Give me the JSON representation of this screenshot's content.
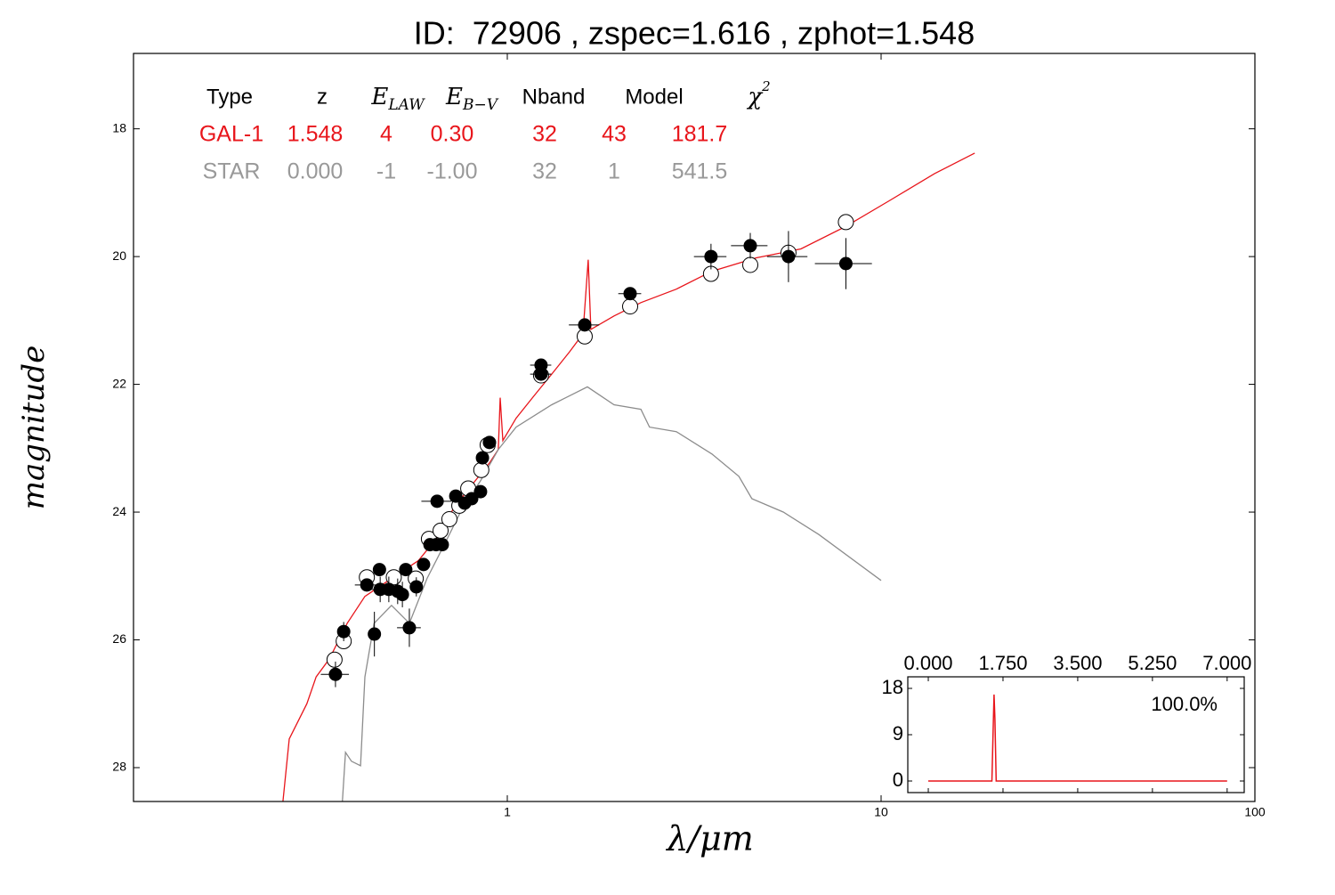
{
  "chart_data": [
    {
      "type": "line",
      "title": "ID:  72906 , zspec=1.616 , zphot=1.548",
      "xlabel": "λ/μm",
      "ylabel": "magnitude",
      "x_log": true,
      "y_inverted": true,
      "xlim": [
        0.1,
        100
      ],
      "ylim": [
        16.82,
        28.53
      ],
      "xticks": [
        1,
        10,
        100
      ],
      "yticks": [
        18,
        20,
        22,
        24,
        26,
        28
      ],
      "table": {
        "header": [
          "Type",
          "z",
          {
            "text": "E",
            "sub": "LAW"
          },
          {
            "text": "E",
            "sub": "B−V"
          },
          "Nband",
          "Model",
          {
            "text": "χ",
            "sup": "2"
          }
        ],
        "rows": [
          {
            "color": "#e8151b",
            "cells": [
              "GAL-1",
              "1.548",
              "4",
              "0.30",
              "32",
              "43",
              "181.7"
            ]
          },
          {
            "color": "#999999",
            "cells": [
              "STAR",
              "0.000",
              "-1",
              "-1.00",
              "32",
              "1",
              "541.5"
            ]
          }
        ]
      },
      "series": [
        {
          "type": "line",
          "color": "#e8151b",
          "x": [
            0.251,
            0.261,
            0.291,
            0.308,
            0.334,
            0.373,
            0.416,
            0.49,
            0.578,
            0.645,
            0.72,
            0.803,
            0.896,
            0.946,
            0.957,
            0.973,
            1.056,
            1.179,
            1.315,
            1.468,
            1.594,
            1.646,
            1.673,
            1.93,
            2.277,
            2.832,
            3.526,
            4.638,
            6.102,
            8.03,
            10.56,
            13.9,
            17.8
          ],
          "values": [
            28.53,
            27.55,
            27.0,
            26.58,
            26.3,
            25.74,
            25.32,
            25.04,
            24.76,
            24.42,
            23.93,
            23.58,
            23.23,
            23.02,
            22.21,
            22.88,
            22.53,
            22.18,
            21.84,
            21.49,
            21.21,
            20.05,
            21.14,
            20.93,
            20.72,
            20.51,
            20.23,
            20.02,
            19.88,
            19.53,
            19.12,
            18.7,
            18.38
          ]
        },
        {
          "type": "line",
          "color": "#8c8c8c",
          "x": [
            0.362,
            0.369,
            0.383,
            0.405,
            0.416,
            0.44,
            0.49,
            0.547,
            0.61,
            0.681,
            0.76,
            0.848,
            0.946,
            1.056,
            1.315,
            1.638,
            1.93,
            2.277,
            2.402,
            2.832,
            3.526,
            4.163,
            4.511,
            5.473,
            6.812,
            10.0
          ],
          "values": [
            28.53,
            27.76,
            27.9,
            27.97,
            26.58,
            25.74,
            25.46,
            25.74,
            25.04,
            24.49,
            23.93,
            23.51,
            23.02,
            22.67,
            22.32,
            22.04,
            22.32,
            22.39,
            22.67,
            22.74,
            23.09,
            23.44,
            23.79,
            24.0,
            24.35,
            25.07
          ]
        },
        {
          "type": "scatter",
          "color": "#000000",
          "fill": "#ffffff",
          "x": [
            0.345,
            0.365,
            0.421,
            0.497,
            0.569,
            0.617,
            0.663,
            0.7,
            0.744,
            0.786,
            0.852,
            0.886,
            1.231,
            1.611,
            2.131,
            3.507,
            4.467,
            5.652,
            8.05
          ],
          "values": [
            26.31,
            26.02,
            25.02,
            25.02,
            25.04,
            24.42,
            24.29,
            24.11,
            23.9,
            23.63,
            23.34,
            22.95,
            21.86,
            21.25,
            20.78,
            20.27,
            20.13,
            19.94,
            19.46
          ]
        },
        {
          "type": "errorbar",
          "color": "#000000",
          "fill": "#000000",
          "x": [
            0.347,
            0.365,
            0.421,
            0.441,
            0.455,
            0.457,
            0.482,
            0.509,
            0.524,
            0.535,
            0.547,
            0.571,
            0.597,
            0.621,
            0.645,
            0.67,
            0.649,
            0.728,
            0.769,
            0.803,
            0.848,
            0.858,
            0.896,
            1.231,
            1.231,
            1.611,
            2.131,
            3.507,
            4.467,
            5.652,
            8.05
          ],
          "values": [
            26.54,
            25.87,
            25.14,
            25.91,
            24.9,
            25.21,
            25.21,
            25.24,
            25.29,
            24.9,
            25.81,
            25.17,
            24.82,
            24.51,
            24.51,
            24.51,
            23.83,
            23.75,
            23.86,
            23.79,
            23.68,
            23.15,
            22.91,
            21.7,
            21.84,
            21.07,
            20.58,
            20.0,
            19.83,
            20.0,
            20.11
          ],
          "yerr": [
            0.2,
            0.15,
            0.1,
            0.35,
            0.1,
            0.2,
            0.2,
            0.2,
            0.2,
            0.1,
            0.3,
            0.15,
            0.1,
            0.1,
            0.1,
            0.1,
            0.1,
            0.1,
            0.1,
            0.1,
            0.1,
            0.1,
            0.1,
            0.05,
            0.05,
            0.05,
            0.05,
            0.2,
            0.2,
            0.4,
            0.4
          ],
          "xerr": [
            0.03,
            0.01,
            0.03,
            0.01,
            0.01,
            0.04,
            0.01,
            0.01,
            0.01,
            0.01,
            0.04,
            0.02,
            0.01,
            0.01,
            0.01,
            0.01,
            0.06,
            0.01,
            0.01,
            0.01,
            0.01,
            0.02,
            0.02,
            0.08,
            0.08,
            0.15,
            0.15,
            0.35,
            0.5,
            0.7,
            1.4
          ]
        }
      ]
    },
    {
      "type": "line",
      "annotation": "100.0%",
      "xlim": [
        -0.48,
        7.4
      ],
      "ylim": [
        -2.25,
        20.25
      ],
      "xticks": [
        {
          "value": 0,
          "label": "0.000"
        },
        {
          "value": 1.75,
          "label": "1.750"
        },
        {
          "value": 3.5,
          "label": "3.500"
        },
        {
          "value": 5.25,
          "label": "5.250"
        },
        {
          "value": 7,
          "label": "7.000"
        }
      ],
      "yticks": [
        0,
        9,
        18
      ],
      "series": [
        {
          "type": "line",
          "color": "#e8151b",
          "x": [
            0,
            1.49,
            1.52,
            1.54,
            1.56,
            1.59,
            7
          ],
          "values": [
            0,
            0,
            10,
            16.8,
            12,
            0,
            0
          ]
        }
      ]
    }
  ]
}
